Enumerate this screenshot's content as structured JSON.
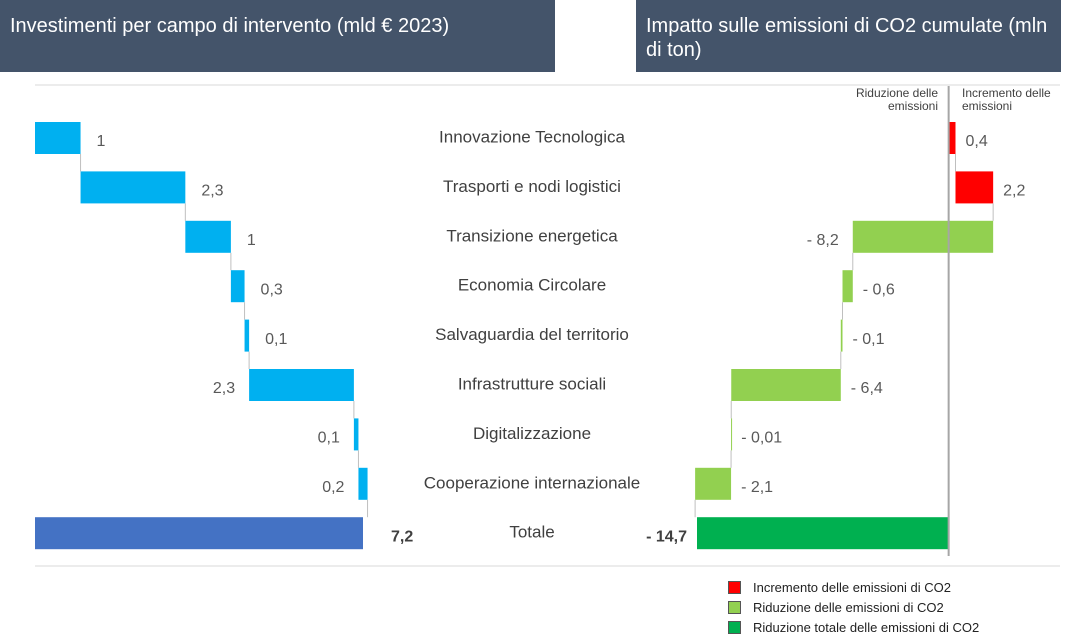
{
  "chart_data": [
    {
      "type": "waterfall",
      "title": "Investimenti per campo di intervento (mld € 2023)",
      "categories": [
        "Innovazione Tecnologica",
        "Trasporti e nodi logistici",
        "Transizione energetica",
        "Economia Circolare",
        "Salvaguardia del territorio",
        "Infrastrutture sociali",
        "Digitalizzazione",
        "Cooperazione internazionale",
        "Totale"
      ],
      "values": [
        1,
        2.3,
        1,
        0.3,
        0.1,
        2.3,
        0.1,
        0.2,
        7.2
      ],
      "value_labels": [
        "1",
        "2,3",
        "1",
        "0,3",
        "0,1",
        "2,3",
        "0,1",
        "0,2",
        "7,2"
      ],
      "color": "#00b0f0",
      "total_color": "#4472c4",
      "xlim": [
        0,
        7.2
      ]
    },
    {
      "type": "waterfall",
      "title": "Impatto sulle emissioni di CO2 cumulate (mln di ton)",
      "column_labels": [
        "Riduzione delle emissioni",
        "Incremento delle emissioni"
      ],
      "values": [
        0.4,
        2.2,
        -8.2,
        -0.6,
        -0.1,
        -6.4,
        -0.01,
        -2.1,
        -14.7
      ],
      "value_labels": [
        "0,4",
        "2,2",
        "- 8,2",
        "- 0,6",
        "- 0,1",
        "- 6,4",
        "- 0,01",
        "- 2,1",
        "- 14,7"
      ],
      "xlim": [
        -14.7,
        3
      ],
      "legend": {
        "position": "lower right",
        "entries": [
          {
            "name": "Incremento delle emissioni di CO2",
            "color": "#ff0000"
          },
          {
            "name": "Riduzione delle emissioni di CO2",
            "color": "#92d050"
          },
          {
            "name": "Riduzione totale delle emissioni di CO2",
            "color": "#00b050"
          }
        ]
      }
    }
  ]
}
